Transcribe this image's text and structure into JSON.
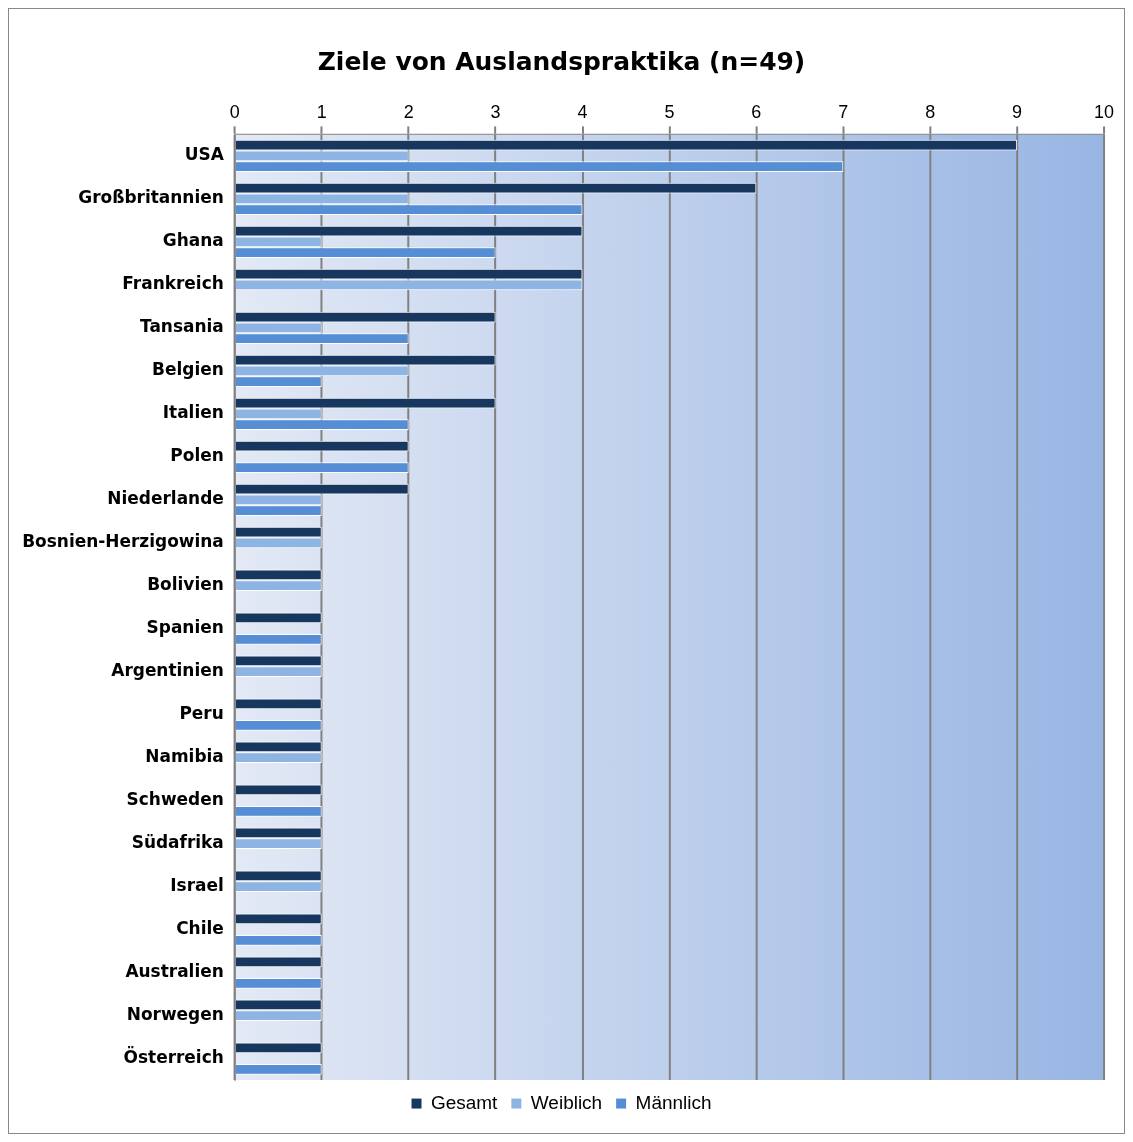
{
  "chart_data": {
    "type": "bar",
    "orientation": "horizontal",
    "title": "Ziele von Auslandspraktika (n=49)",
    "categories": [
      "USA",
      "Großbritannien",
      "Ghana",
      "Frankreich",
      "Tansania",
      "Belgien",
      "Italien",
      "Polen",
      "Niederlande",
      "Bosnien-Herzigowina",
      "Bolivien",
      "Spanien",
      "Argentinien",
      "Peru",
      "Namibia",
      "Schweden",
      "Südafrika",
      "Israel",
      "Chile",
      "Australien",
      "Norwegen",
      "Österreich"
    ],
    "series": [
      {
        "name": "Gesamt",
        "color": "#17375e",
        "values": [
          9,
          6,
          4,
          4,
          3,
          3,
          3,
          2,
          2,
          1,
          1,
          1,
          1,
          1,
          1,
          1,
          1,
          1,
          1,
          1,
          1,
          1
        ]
      },
      {
        "name": "Weiblich",
        "color": "#8eb4e3",
        "values": [
          2,
          2,
          1,
          4,
          1,
          2,
          1,
          0,
          1,
          1,
          1,
          0,
          1,
          0,
          1,
          0,
          1,
          1,
          0,
          0,
          1,
          0
        ]
      },
      {
        "name": "Männlich",
        "color": "#558ed5",
        "values": [
          7,
          4,
          3,
          0,
          2,
          1,
          2,
          2,
          1,
          0,
          0,
          1,
          0,
          1,
          0,
          1,
          0,
          0,
          1,
          1,
          0,
          1
        ]
      }
    ],
    "xlim": [
      0,
      10
    ],
    "xticks": [
      0,
      1,
      2,
      3,
      4,
      5,
      6,
      7,
      8,
      9,
      10
    ],
    "grid": "x",
    "legend": "bottom"
  }
}
